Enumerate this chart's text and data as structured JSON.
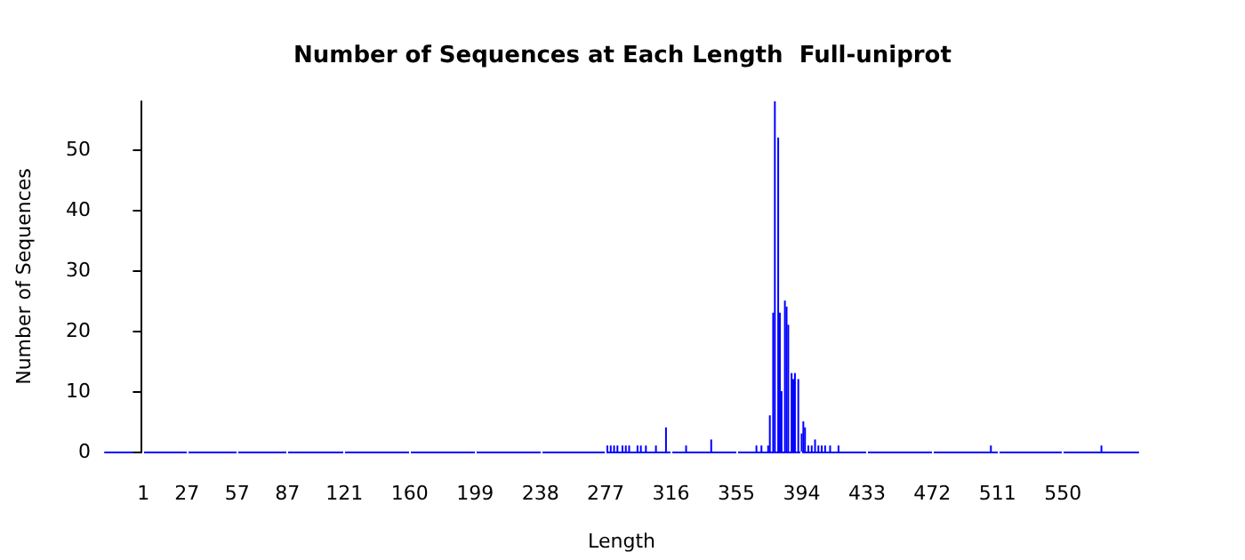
{
  "chart_data": {
    "type": "bar",
    "title": "Number of Sequences at Each Length  Full-uniprot",
    "xlabel": "Length",
    "ylabel": "Number of Sequences",
    "x": [
      278,
      280,
      282,
      284,
      287,
      289,
      291,
      296,
      298,
      301,
      307,
      313,
      325,
      340,
      367,
      370,
      374,
      375,
      377,
      378,
      380,
      381,
      382,
      384,
      385,
      386,
      388,
      389,
      390,
      392,
      394,
      395,
      396,
      398,
      400,
      402,
      404,
      406,
      408,
      411,
      416,
      507,
      573
    ],
    "values": [
      1,
      1,
      1,
      1,
      1,
      1,
      1,
      1,
      1,
      1,
      1,
      4,
      1,
      2,
      1,
      1,
      1,
      6,
      23,
      58,
      52,
      23,
      10,
      25,
      24,
      21,
      13,
      12,
      13,
      12,
      3,
      5,
      4,
      1,
      1,
      2,
      1,
      1,
      1,
      1,
      1,
      1,
      1
    ],
    "color": "#0000ff",
    "xlim": [
      -22,
      595
    ],
    "xticks": [
      1,
      27,
      57,
      87,
      121,
      160,
      199,
      238,
      277,
      316,
      355,
      394,
      433,
      472,
      511,
      550
    ],
    "ylim": [
      0,
      58
    ],
    "yticks": [
      0,
      10,
      20,
      30,
      40,
      50
    ],
    "grid": false
  }
}
